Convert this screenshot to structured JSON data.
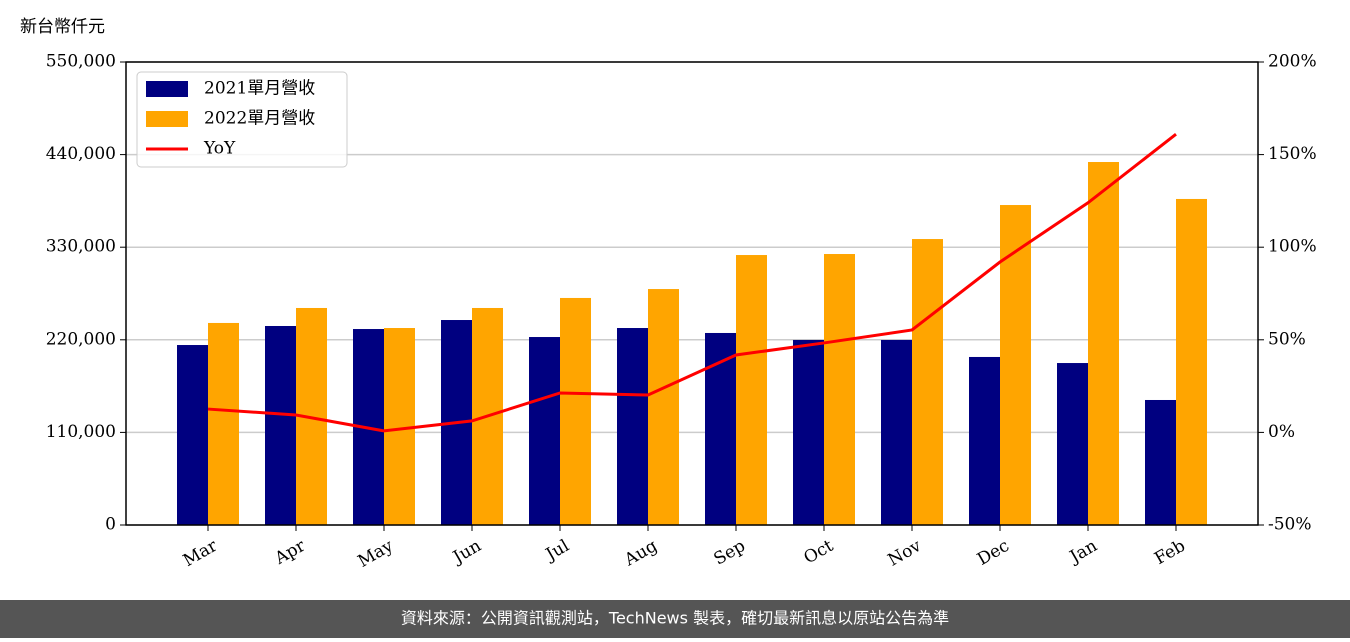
{
  "chart_data": {
    "type": "bar_line",
    "ylabel": "新台幣仟元",
    "categories": [
      "Mar",
      "Apr",
      "May",
      "Jun",
      "Jul",
      "Aug",
      "Sep",
      "Oct",
      "Nov",
      "Dec",
      "Jan",
      "Feb"
    ],
    "series": [
      {
        "name": "2021單月營收",
        "color": "#000080",
        "type": "bar",
        "values": [
          213800,
          236400,
          232800,
          243500,
          223300,
          234000,
          228100,
          219800,
          219800,
          199600,
          192400,
          148500
        ]
      },
      {
        "name": "2022單月營收",
        "color": "#ffa500",
        "type": "bar",
        "values": [
          240000,
          257800,
          234000,
          257800,
          269700,
          280300,
          320700,
          321900,
          339700,
          380100,
          431200,
          387300
        ]
      },
      {
        "name": "YoY",
        "color": "#ff0000",
        "type": "line",
        "axis": "y2",
        "values": [
          12.6,
          9.4,
          0.8,
          6.2,
          21.3,
          20.2,
          41.8,
          48.3,
          55.3,
          92,
          124,
          161
        ]
      }
    ],
    "ylim": [
      0,
      550000
    ],
    "yticks": [
      0,
      {
        "value": 110000,
        "label": "110,000"
      },
      {
        "value": 220000,
        "label": "220,000"
      },
      {
        "value": 330000,
        "label": "330,000"
      },
      {
        "value": 440000,
        "label": "440,000"
      },
      {
        "value": 550000,
        "label": "550,000"
      }
    ],
    "y2lim": [
      -50,
      200
    ],
    "y2ticks": [
      {
        "value": -50,
        "label": "-50%"
      },
      {
        "value": 0,
        "label": "0%"
      },
      {
        "value": 50,
        "label": "50%"
      },
      {
        "value": 100,
        "label": "100%"
      },
      {
        "value": 150,
        "label": "150%"
      },
      {
        "value": 200,
        "label": "200%"
      }
    ],
    "grid": true,
    "legend": "upper left"
  },
  "footer": "資料來源：公開資訊觀測站，TechNews 製表，確切最新訊息以原站公告為準"
}
